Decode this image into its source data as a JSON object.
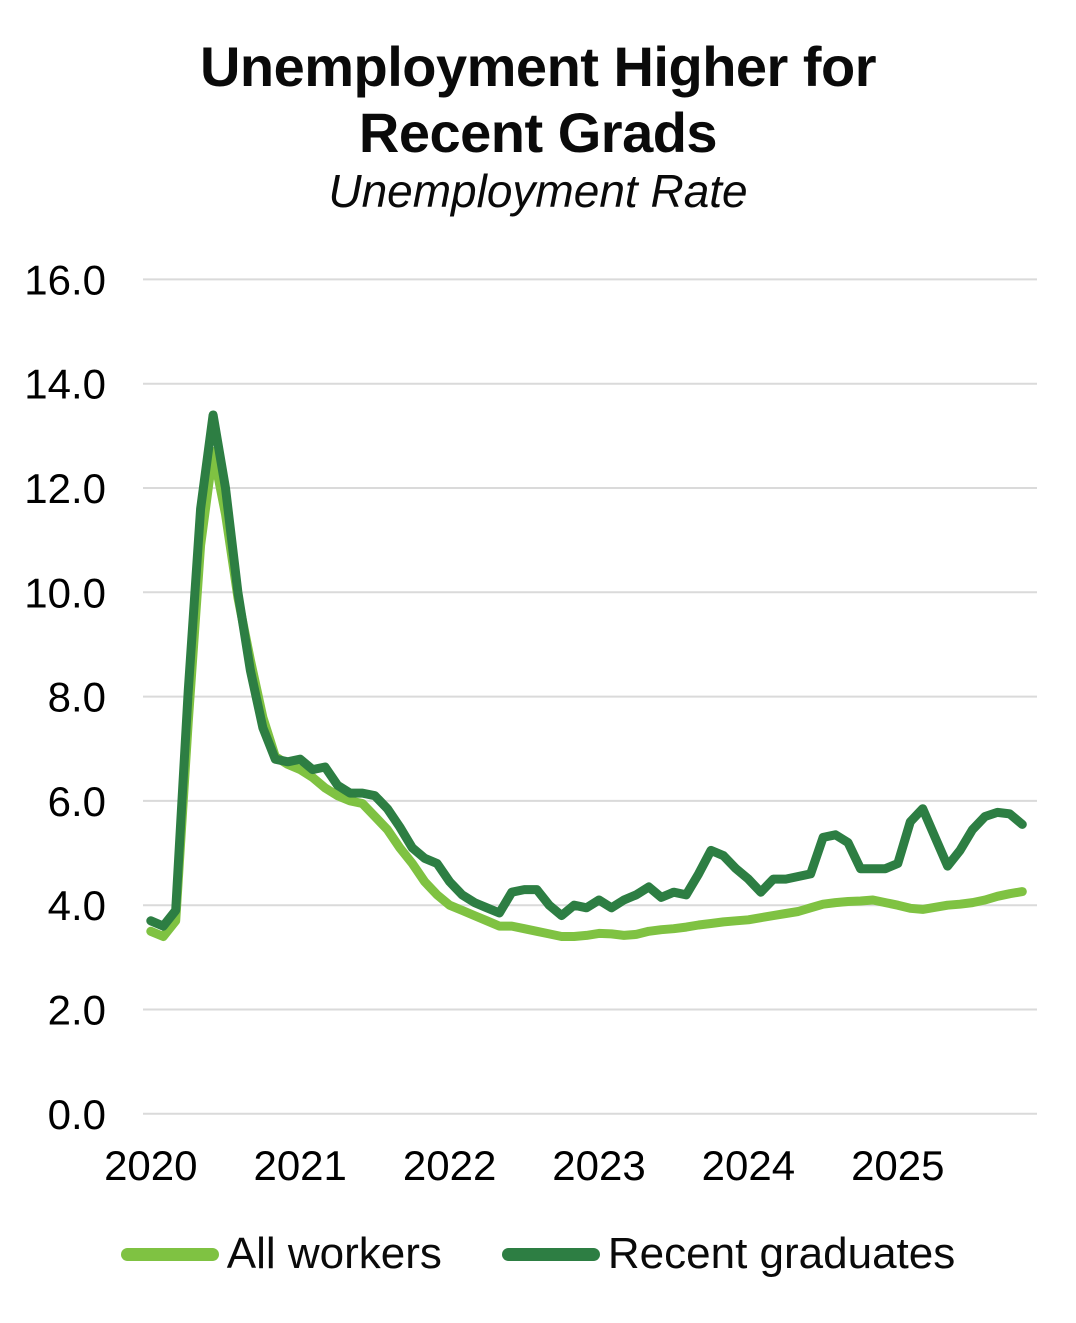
{
  "page": {
    "background": "#FFFFFF"
  },
  "header": {
    "title_line1": "Unemployment Higher for",
    "title_line2": "Recent Grads",
    "subtitle": "Unemployment Rate"
  },
  "legend": {
    "items": [
      {
        "label": "All workers",
        "color": "#7FC242"
      },
      {
        "label": "Recent graduates",
        "color": "#2D7E43"
      }
    ]
  },
  "chart_data": {
    "type": "line",
    "title": "Unemployment Higher for Recent Grads",
    "subtitle": "Unemployment Rate",
    "unit": "percent",
    "ylim": [
      0,
      16
    ],
    "y_tick_step": 2,
    "y_tick_labels": [
      "0.0",
      "2.0",
      "4.0",
      "6.0",
      "8.0",
      "10.0",
      "12.0",
      "14.0",
      "16.0"
    ],
    "x_tick_labels": [
      "2020",
      "2021",
      "2022",
      "2023",
      "2024",
      "2025"
    ],
    "grid": "horizontal",
    "legend_position": "bottom",
    "colors": {
      "gridline": "#DADADA",
      "text": "#000000"
    },
    "x_months": [
      "2020-01",
      "2020-02",
      "2020-03",
      "2020-04",
      "2020-05",
      "2020-06",
      "2020-07",
      "2020-08",
      "2020-09",
      "2020-10",
      "2020-11",
      "2020-12",
      "2021-01",
      "2021-02",
      "2021-03",
      "2021-04",
      "2021-05",
      "2021-06",
      "2021-07",
      "2021-08",
      "2021-09",
      "2021-10",
      "2021-11",
      "2021-12",
      "2022-01",
      "2022-02",
      "2022-03",
      "2022-04",
      "2022-05",
      "2022-06",
      "2022-07",
      "2022-08",
      "2022-09",
      "2022-10",
      "2022-11",
      "2022-12",
      "2023-01",
      "2023-02",
      "2023-03",
      "2023-04",
      "2023-05",
      "2023-06",
      "2023-07",
      "2023-08",
      "2023-09",
      "2023-10",
      "2023-11",
      "2023-12",
      "2024-01",
      "2024-02",
      "2024-03",
      "2024-04",
      "2024-05",
      "2024-06",
      "2024-07",
      "2024-08",
      "2024-09",
      "2024-10",
      "2024-11",
      "2024-12",
      "2025-01",
      "2025-02",
      "2025-03",
      "2025-04",
      "2025-05",
      "2025-06",
      "2025-07",
      "2025-08",
      "2025-09",
      "2025-10",
      "2025-11"
    ],
    "series": [
      {
        "name": "All workers",
        "color": "#7FC242",
        "values": [
          3.5,
          3.4,
          3.7,
          7.5,
          10.9,
          12.7,
          11.5,
          9.9,
          8.7,
          7.6,
          6.85,
          6.7,
          6.6,
          6.45,
          6.25,
          6.1,
          6.0,
          5.95,
          5.7,
          5.45,
          5.1,
          4.8,
          4.45,
          4.2,
          4.0,
          3.9,
          3.8,
          3.7,
          3.6,
          3.6,
          3.55,
          3.5,
          3.45,
          3.4,
          3.4,
          3.42,
          3.46,
          3.45,
          3.42,
          3.44,
          3.5,
          3.53,
          3.55,
          3.58,
          3.62,
          3.65,
          3.68,
          3.7,
          3.72,
          3.76,
          3.8,
          3.84,
          3.88,
          3.95,
          4.02,
          4.05,
          4.07,
          4.08,
          4.1,
          4.05,
          4.0,
          3.94,
          3.92,
          3.96,
          4.0,
          4.02,
          4.05,
          4.1,
          4.17,
          4.22,
          4.26
        ]
      },
      {
        "name": "Recent graduates",
        "color": "#2D7E43",
        "values": [
          3.7,
          3.6,
          3.9,
          8.1,
          11.6,
          13.4,
          12.0,
          10.0,
          8.5,
          7.4,
          6.8,
          6.75,
          6.8,
          6.6,
          6.65,
          6.3,
          6.15,
          6.15,
          6.1,
          5.85,
          5.5,
          5.1,
          4.9,
          4.8,
          4.45,
          4.2,
          4.05,
          3.95,
          3.85,
          4.25,
          4.3,
          4.3,
          4.0,
          3.8,
          4.0,
          3.95,
          4.1,
          3.95,
          4.1,
          4.2,
          4.35,
          4.15,
          4.25,
          4.2,
          4.6,
          5.05,
          4.95,
          4.7,
          4.5,
          4.25,
          4.5,
          4.5,
          4.55,
          4.6,
          5.3,
          5.35,
          5.2,
          4.7,
          4.7,
          4.7,
          4.8,
          5.6,
          5.85,
          5.3,
          4.75,
          5.05,
          5.45,
          5.7,
          5.78,
          5.75,
          5.55
        ]
      }
    ]
  }
}
